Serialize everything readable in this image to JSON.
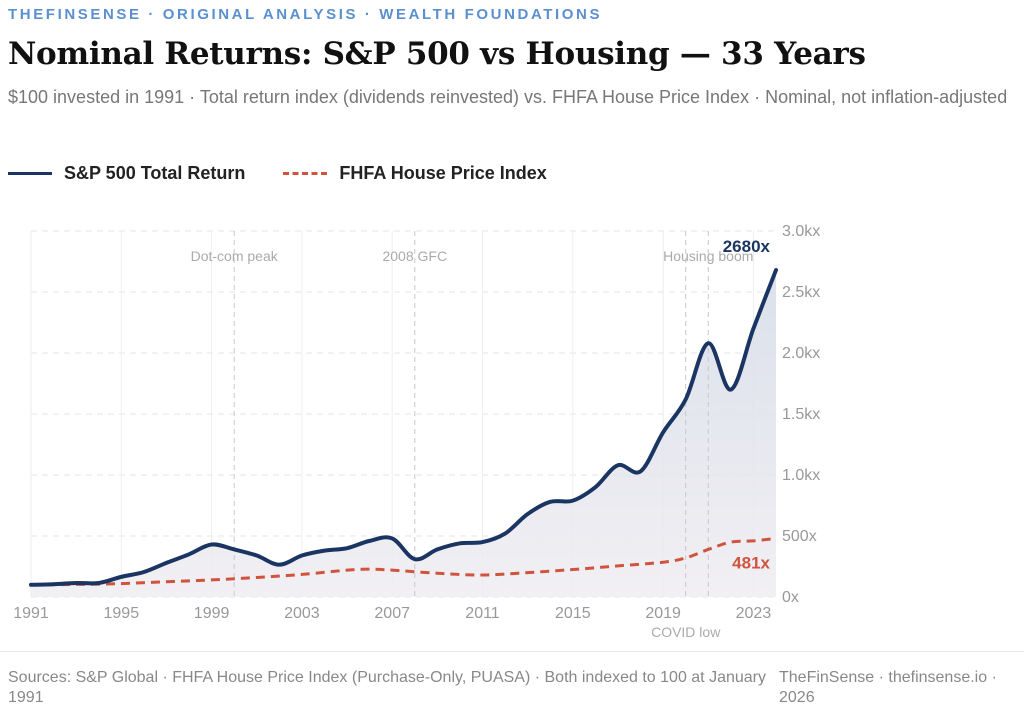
{
  "header": {
    "kicker": "THEFINSENSE · ORIGINAL ANALYSIS · WEALTH FOUNDATIONS",
    "title": "Nominal Returns: S&P 500 vs Housing — 33 Years",
    "subtitle": "$100 invested in 1991 · Total return index (dividends reinvested) vs. FHFA House Price Index · Nominal, not inflation-adjusted"
  },
  "chart_data": {
    "type": "line",
    "xlim": [
      1991,
      2024
    ],
    "ylim": [
      0,
      3000
    ],
    "x_ticks": [
      "1991",
      "1995",
      "1999",
      "2003",
      "2007",
      "2011",
      "2015",
      "2019",
      "2023"
    ],
    "y_ticks": [
      "0x",
      "500x",
      "1.0kx",
      "1.5kx",
      "2.0kx",
      "2.5kx",
      "3.0kx"
    ],
    "grid": true,
    "legend": "top-left",
    "series": [
      {
        "name": "S&P 500 Total Return",
        "color": "#1b3563",
        "style": "solid",
        "end_label": "2680x",
        "x": [
          1991,
          1992,
          1993,
          1994,
          1995,
          1996,
          1997,
          1998,
          1999,
          2000,
          2001,
          2002,
          2003,
          2004,
          2005,
          2006,
          2007,
          2008,
          2009,
          2010,
          2011,
          2012,
          2013,
          2014,
          2015,
          2016,
          2017,
          2018,
          2019,
          2020,
          2021,
          2022,
          2023,
          2024
        ],
        "y": [
          100,
          105,
          115,
          115,
          165,
          205,
          280,
          350,
          430,
          390,
          340,
          265,
          340,
          380,
          400,
          460,
          480,
          310,
          390,
          440,
          450,
          520,
          680,
          780,
          790,
          900,
          1080,
          1030,
          1350,
          1620,
          2080,
          1700,
          2200,
          2680
        ]
      },
      {
        "name": "FHFA House Price Index",
        "color": "#d0533e",
        "style": "dashed",
        "end_label": "481x",
        "x": [
          1991,
          1993,
          1995,
          1997,
          1999,
          2001,
          2003,
          2005,
          2006,
          2007,
          2009,
          2011,
          2013,
          2015,
          2017,
          2019,
          2020,
          2021,
          2022,
          2023,
          2024
        ],
        "y": [
          100,
          103,
          110,
          125,
          140,
          160,
          185,
          220,
          228,
          220,
          195,
          180,
          200,
          225,
          255,
          285,
          320,
          390,
          450,
          460,
          481
        ]
      }
    ],
    "annotations": [
      {
        "x": 2000,
        "label": "Dot-com peak",
        "pos": "top"
      },
      {
        "x": 2008,
        "label": "2008 GFC",
        "pos": "top"
      },
      {
        "x": 2021,
        "label": "Housing boom",
        "pos": "top"
      },
      {
        "x": 2020,
        "label": "COVID low",
        "pos": "bottom"
      }
    ]
  },
  "footer": {
    "sources": "Sources: S&P Global · FHFA House Price Index (Purchase-Only, PUASA) · Both indexed to 100 at January 1991",
    "brand": "TheFinSense · thefinsense.io · 2026"
  }
}
